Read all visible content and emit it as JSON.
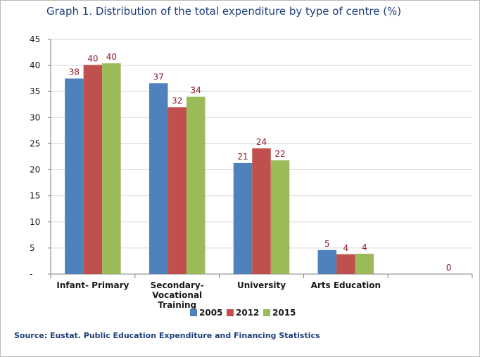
{
  "title": "Graph 1. Distribution of the total expenditure by type of centre (%)",
  "source": "Source: Eustat. Public Education Expenditure and Financing Statistics",
  "colors": {
    "2005": "#4f81bd",
    "2012": "#c0504d",
    "2015": "#9bbb59",
    "label": "#8b1a2b",
    "grid": "#d9d9d9",
    "axis": "#808080"
  },
  "chart_data": {
    "type": "bar",
    "categories": [
      "Infant- Primary",
      "Secondary-\nVocational\nTraining",
      "University",
      "Arts Education",
      ""
    ],
    "series": [
      {
        "name": "2005",
        "values": [
          37.5,
          36.6,
          21.3,
          4.6,
          null
        ],
        "labels": [
          "38",
          "37",
          "21",
          "5",
          ""
        ]
      },
      {
        "name": "2012",
        "values": [
          40.1,
          32.0,
          24.1,
          3.8,
          null
        ],
        "labels": [
          "40",
          "32",
          "24",
          "4",
          ""
        ]
      },
      {
        "name": "2015",
        "values": [
          40.4,
          34.0,
          21.8,
          3.9,
          0
        ],
        "labels": [
          "40",
          "34",
          "22",
          "4",
          "0"
        ]
      }
    ],
    "yticks": [
      "-",
      "5",
      "10",
      "15",
      "20",
      "25",
      "30",
      "35",
      "40",
      "45"
    ],
    "ylim": [
      0,
      45
    ],
    "grid": true,
    "legend": "bottom-center"
  }
}
